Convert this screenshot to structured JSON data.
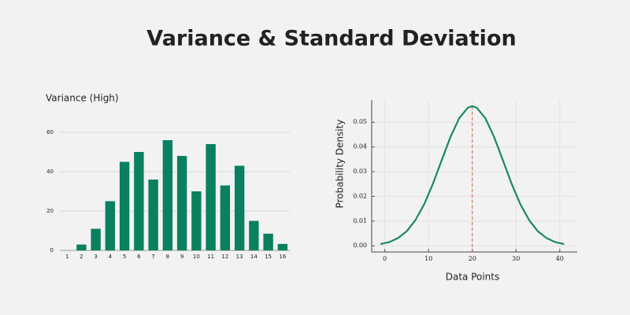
{
  "title": "Variance & Standard Deviation",
  "chart_data": [
    {
      "type": "bar",
      "title": "Variance (High)",
      "categories": [
        "1",
        "2",
        "3",
        "4",
        "5",
        "6",
        "7",
        "8",
        "9",
        "10",
        "11",
        "12",
        "13",
        "14",
        "15",
        "16"
      ],
      "values": [
        0,
        3,
        11,
        25,
        45,
        50,
        36,
        56,
        48,
        30,
        54,
        33,
        43,
        15,
        8.5,
        3.3
      ],
      "color": "#0a8060",
      "ylim": [
        0,
        64
      ],
      "yticks": [
        0,
        20,
        40,
        60
      ],
      "grid": true
    },
    {
      "type": "line",
      "xlabel": "Data Points",
      "ylabel": "Probability Density",
      "x": [
        -1,
        1,
        3,
        5,
        7,
        9,
        11,
        13,
        15,
        17,
        19,
        20,
        21,
        23,
        25,
        27,
        29,
        31,
        33,
        35,
        37,
        39,
        41
      ],
      "values": [
        0.0007,
        0.0015,
        0.0031,
        0.0059,
        0.0104,
        0.0168,
        0.0251,
        0.0346,
        0.044,
        0.0516,
        0.0559,
        0.0565,
        0.0559,
        0.0516,
        0.044,
        0.0346,
        0.0251,
        0.0168,
        0.0104,
        0.0059,
        0.0031,
        0.0015,
        0.0007
      ],
      "color": "#1a8a5a",
      "mean_line": {
        "x": 20,
        "color": "#e05a4f"
      },
      "xlim": [
        -3,
        44
      ],
      "ylim": [
        -0.0025,
        0.059
      ],
      "xticks": [
        0,
        10,
        20,
        30,
        40
      ],
      "yticks": [
        {
          "value": 0,
          "label": "0.00"
        },
        {
          "value": 0.01,
          "label": "0.01"
        },
        {
          "value": 0.02,
          "label": "0.02"
        },
        {
          "value": 0.03,
          "label": "0.03"
        },
        {
          "value": 0.04,
          "label": "0.04"
        },
        {
          "value": 0.05,
          "label": "0.05"
        }
      ],
      "grid": true
    }
  ]
}
